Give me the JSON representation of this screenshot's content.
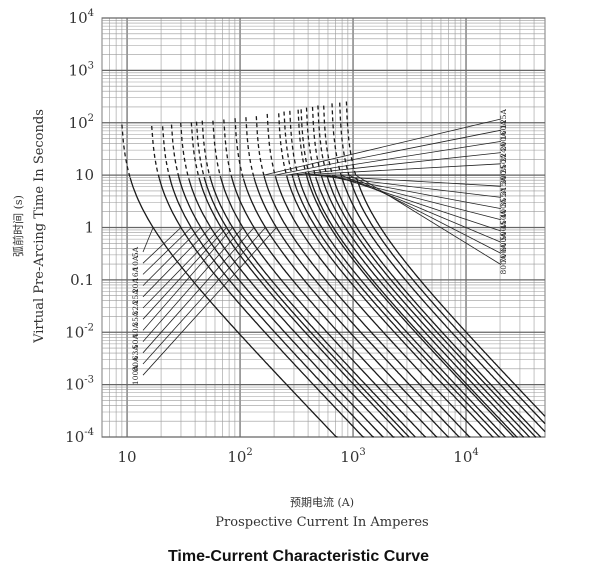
{
  "caption": "Time-Current Characteristic Curve",
  "chart_data": {
    "type": "line",
    "title": "",
    "xlabel_cn": "预期电流 (A)",
    "xlabel": "Prospective Current In Amperes",
    "ylabel_cn": "弧前时间 (s)",
    "ylabel": "Virtual Pre-Arcing Time In Seconds",
    "x_scale": "log",
    "y_scale": "log",
    "xlim": [
      6,
      50000
    ],
    "ylim": [
      0.0001,
      10000
    ],
    "grid": true,
    "x_ticks": [
      {
        "value": 10,
        "base": "10",
        "exp": ""
      },
      {
        "value": 100,
        "base": "10",
        "exp": "2"
      },
      {
        "value": 1000,
        "base": "10",
        "exp": "3"
      },
      {
        "value": 10000,
        "base": "10",
        "exp": "4"
      }
    ],
    "y_ticks": [
      {
        "value": 10000,
        "base": "10",
        "exp": "4"
      },
      {
        "value": 1000,
        "base": "10",
        "exp": "3"
      },
      {
        "value": 100,
        "base": "10",
        "exp": "2"
      },
      {
        "value": 10,
        "base": "10",
        "exp": ""
      },
      {
        "value": 1,
        "base": "1",
        "exp": ""
      },
      {
        "value": 0.1,
        "base": "0.1",
        "exp": ""
      },
      {
        "value": 0.01,
        "base": "10",
        "exp": "-2"
      },
      {
        "value": 0.001,
        "base": "10",
        "exp": "-3"
      },
      {
        "value": 0.0001,
        "base": "10",
        "exp": "-4"
      }
    ],
    "series": [
      {
        "name": "5A",
        "min_current": 8.7,
        "current_at_1s": 17
      },
      {
        "name": "10A",
        "min_current": 16,
        "current_at_1s": 30
      },
      {
        "name": "16A",
        "min_current": 20,
        "current_at_1s": 37
      },
      {
        "name": "20A",
        "min_current": 24,
        "current_at_1s": 45
      },
      {
        "name": "25A",
        "min_current": 29,
        "current_at_1s": 55
      },
      {
        "name": "32A",
        "min_current": 36,
        "current_at_1s": 68
      },
      {
        "name": "35A",
        "min_current": 40,
        "current_at_1s": 76
      },
      {
        "name": "40A",
        "min_current": 45,
        "current_at_1s": 86
      },
      {
        "name": "50A",
        "min_current": 56,
        "current_at_1s": 106
      },
      {
        "name": "63A",
        "min_current": 70,
        "current_at_1s": 133
      },
      {
        "name": "80A",
        "min_current": 88,
        "current_at_1s": 168
      },
      {
        "name": "100A",
        "min_current": 110,
        "current_at_1s": 210
      },
      {
        "name": "125A",
        "min_current": 136,
        "current_at_1s": 260
      },
      {
        "name": "160A",
        "min_current": 170,
        "current_at_1s": 330
      },
      {
        "name": "200A",
        "min_current": 215,
        "current_at_1s": 415
      },
      {
        "name": "224A",
        "min_current": 240,
        "current_at_1s": 470
      },
      {
        "name": "250A",
        "min_current": 270,
        "current_at_1s": 530
      },
      {
        "name": "300A",
        "min_current": 320,
        "current_at_1s": 630
      },
      {
        "name": "315A",
        "min_current": 340,
        "current_at_1s": 670
      },
      {
        "name": "355A",
        "min_current": 380,
        "current_at_1s": 760
      },
      {
        "name": "400A",
        "min_current": 430,
        "current_at_1s": 860
      },
      {
        "name": "450A",
        "min_current": 480,
        "current_at_1s": 970
      },
      {
        "name": "500A",
        "min_current": 540,
        "current_at_1s": 1080
      },
      {
        "name": "600A",
        "min_current": 640,
        "current_at_1s": 1300
      },
      {
        "name": "700A",
        "min_current": 750,
        "current_at_1s": 1520
      },
      {
        "name": "800A",
        "min_current": 860,
        "current_at_1s": 1750
      }
    ],
    "label_groups": [
      {
        "labels": [
          "5A",
          "10A",
          "16A",
          "20A",
          "25A",
          "32A",
          "35A",
          "40A",
          "50A",
          "63A",
          "80A",
          "100A"
        ],
        "placement": "left"
      },
      {
        "labels": [
          "125A",
          "160A",
          "200A",
          "224A",
          "250A",
          "300A",
          "315A",
          "355A",
          "400A",
          "450A",
          "500A",
          "600A",
          "700A",
          "800A"
        ],
        "placement": "right"
      }
    ]
  }
}
